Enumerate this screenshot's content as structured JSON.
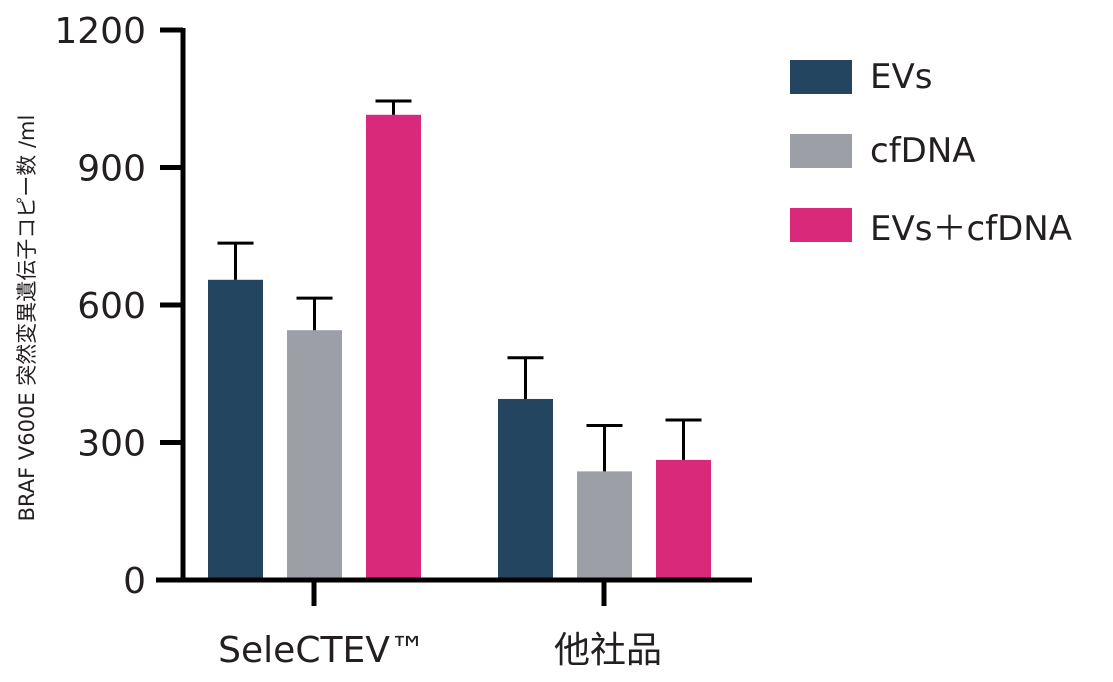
{
  "chart_data": {
    "type": "bar",
    "ylabel": "BRAF V600E 突然変異遺伝子コピー数 /ml",
    "xlabel": "",
    "ylim": [
      0,
      1200
    ],
    "yticks": [
      0,
      300,
      600,
      900,
      1200
    ],
    "grid": false,
    "legend_position": "top-right",
    "categories": [
      "SeleCTEV™",
      "他社品"
    ],
    "series": [
      {
        "name": "EVs",
        "color": "#23455f",
        "values": [
          655,
          395
        ],
        "error": [
          80,
          90
        ]
      },
      {
        "name": "cfDNA",
        "color": "#9c9fa5",
        "values": [
          545,
          237
        ],
        "error": [
          70,
          100
        ]
      },
      {
        "name": "EVs＋cfDNA",
        "color": "#d8297a",
        "values": [
          1015,
          262
        ],
        "error": [
          30,
          87
        ]
      }
    ]
  }
}
